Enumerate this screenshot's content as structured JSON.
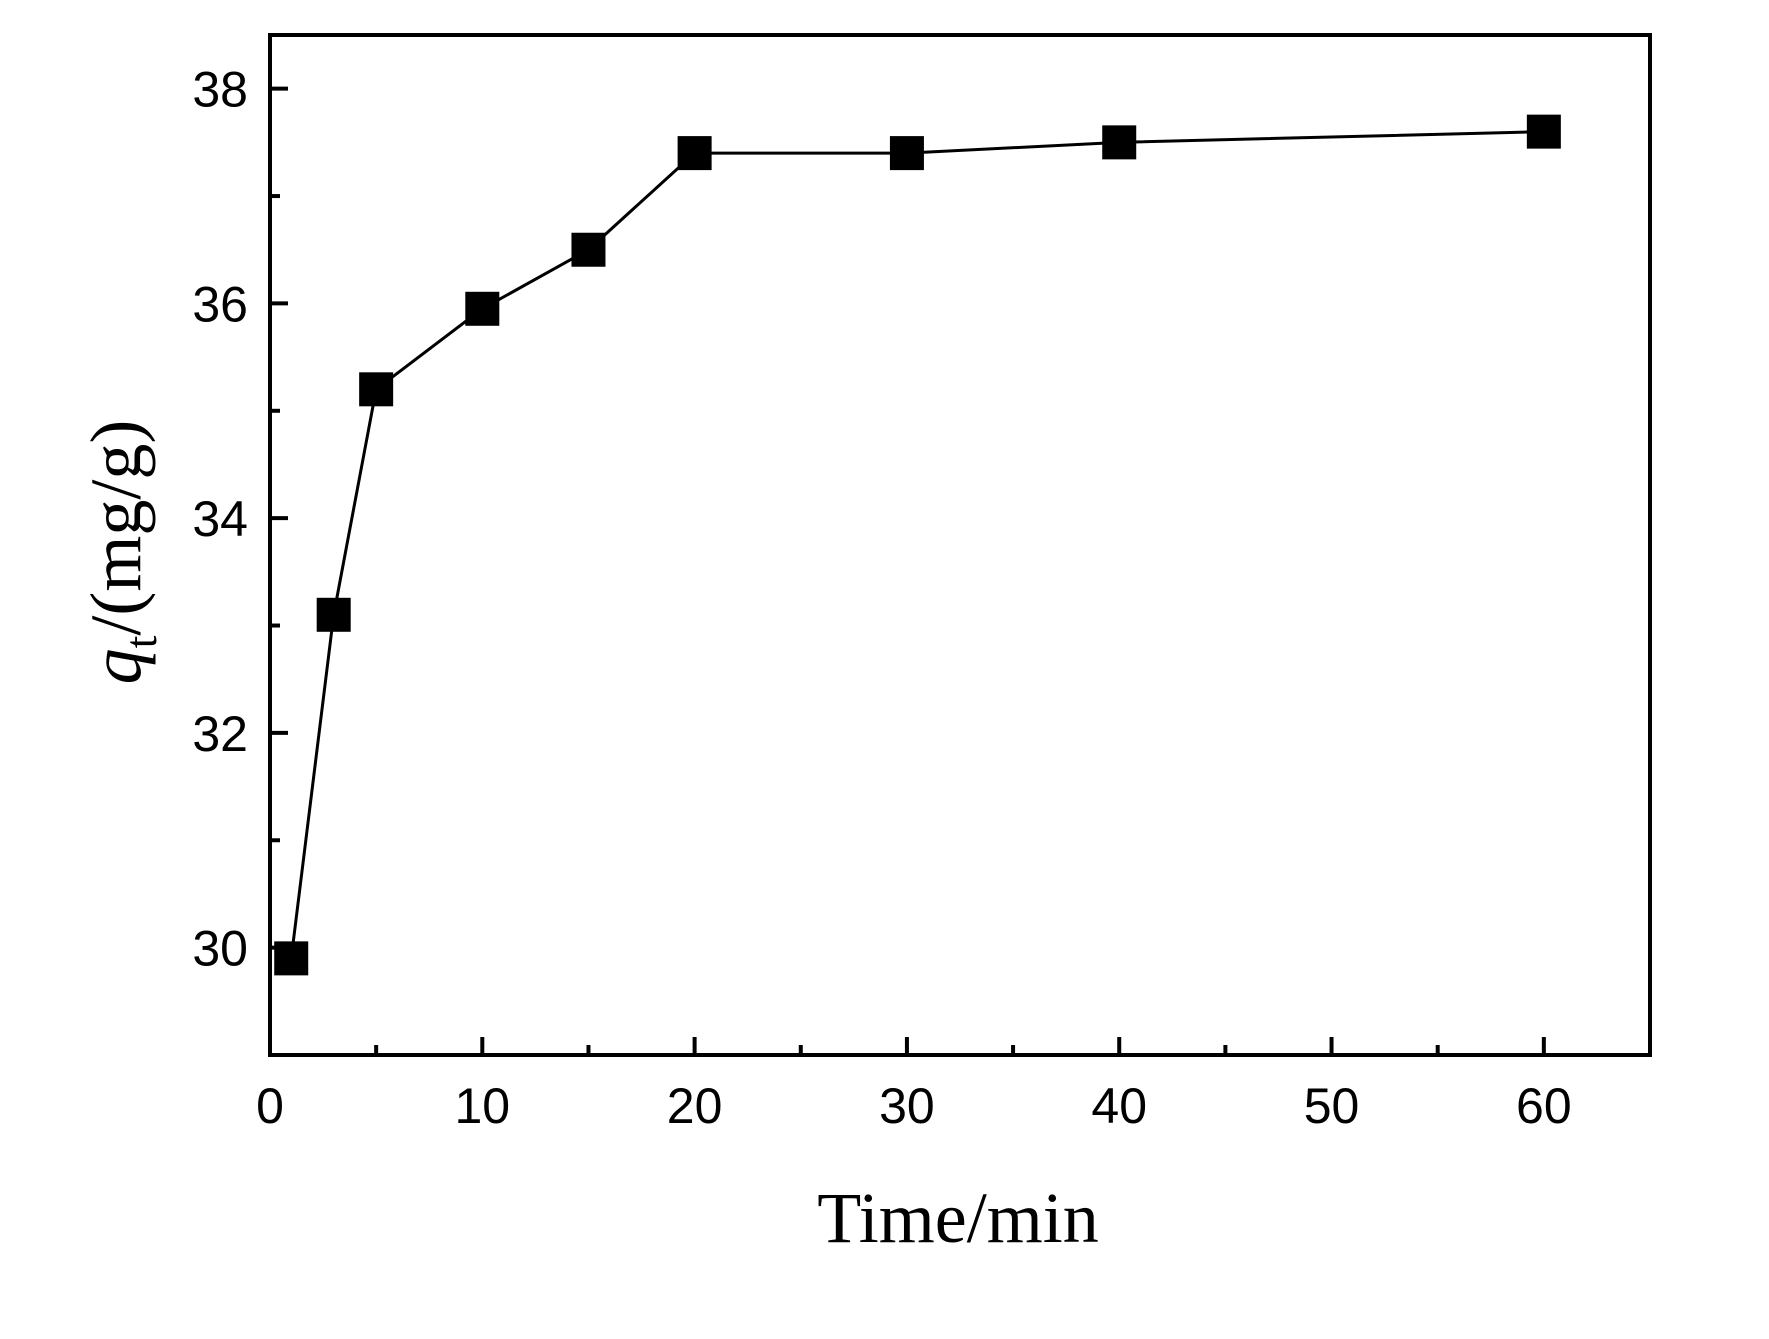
{
  "chart_data": {
    "type": "line",
    "title": "",
    "xlabel": "Time/min",
    "ylabel": {
      "symbol": "q",
      "subscript": "t",
      "unit": "/(mg/g)"
    },
    "xlim": [
      0,
      65
    ],
    "ylim": [
      29,
      38.5
    ],
    "x_ticks": [
      0,
      10,
      20,
      30,
      40,
      50,
      60
    ],
    "x_tick_labels": [
      "0",
      "10",
      "20",
      "30",
      "40",
      "50",
      "60"
    ],
    "x_minor_ticks": [
      5,
      15,
      25,
      35,
      45,
      55
    ],
    "y_ticks": [
      30,
      32,
      34,
      36,
      38
    ],
    "y_tick_labels": [
      "30",
      "32",
      "34",
      "36",
      "38"
    ],
    "y_minor_ticks": [
      31,
      33,
      35,
      37
    ],
    "grid": false,
    "legend": "none",
    "series": [
      {
        "marker": "square",
        "color": "#000000",
        "x": [
          1,
          3,
          5,
          10,
          15,
          20,
          30,
          40,
          60
        ],
        "y": [
          29.9,
          33.1,
          35.2,
          35.95,
          36.5,
          37.4,
          37.4,
          37.5,
          37.6
        ]
      }
    ]
  }
}
